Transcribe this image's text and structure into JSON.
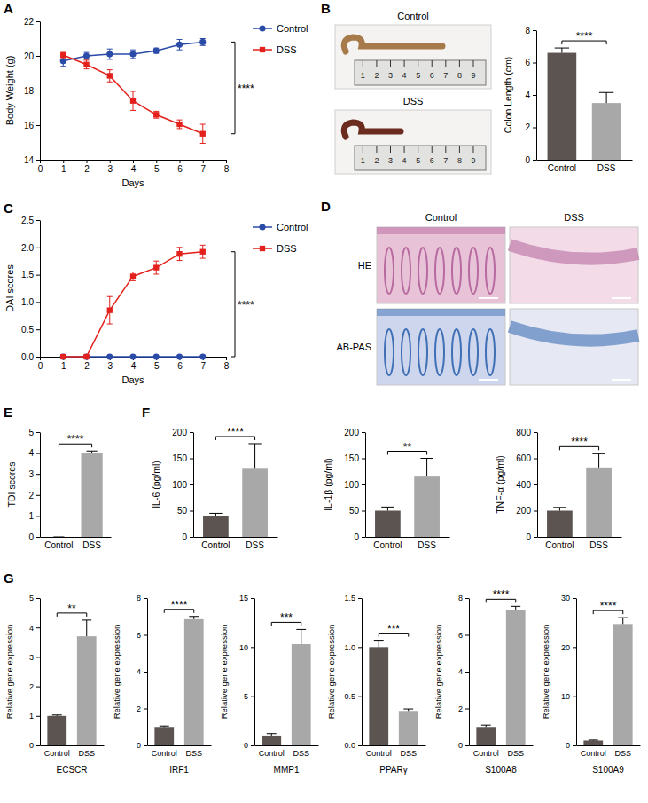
{
  "chart_data": [
    {
      "panel": "A",
      "type": "line",
      "x": [
        1,
        2,
        3,
        4,
        5,
        6,
        7
      ],
      "xlim": [
        0,
        8
      ],
      "xticks": [
        0,
        1,
        2,
        3,
        4,
        5,
        6,
        7,
        8
      ],
      "ylim": [
        14,
        22
      ],
      "yticks": [
        14,
        16,
        18,
        20,
        22
      ],
      "x_label": "Days",
      "y_label": "Body Weight (g)",
      "legend": "right",
      "significance": "****",
      "series": [
        {
          "name": "Control",
          "color": "#2b4ba8",
          "marker": "circle",
          "values": [
            19.7,
            20.0,
            20.1,
            20.1,
            20.3,
            20.65,
            20.8
          ],
          "errors": [
            0.3,
            0.2,
            0.3,
            0.25,
            0.15,
            0.3,
            0.2
          ]
        },
        {
          "name": "DSS",
          "color": "#e3201b",
          "marker": "square",
          "values": [
            20.05,
            19.5,
            18.85,
            17.4,
            16.6,
            16.05,
            15.5
          ],
          "errors": [
            0.15,
            0.25,
            0.35,
            0.55,
            0.2,
            0.25,
            0.55
          ]
        }
      ]
    },
    {
      "type": "bar",
      "categories": [
        "Control",
        "DSS"
      ],
      "values": [
        6.6,
        3.5
      ],
      "errors": [
        0.3,
        0.65
      ],
      "colors": [
        "#5c5451",
        "#a8a8a8"
      ],
      "ylim": [
        0,
        8
      ],
      "yticks": [
        0,
        2,
        4,
        6,
        8
      ],
      "y_label": "Colon Length (cm)",
      "significance": "****"
    },
    {
      "panel": "C",
      "type": "line",
      "x": [
        1,
        2,
        3,
        4,
        5,
        6,
        7
      ],
      "xlim": [
        0,
        8
      ],
      "xticks": [
        0,
        1,
        2,
        3,
        4,
        5,
        6,
        7,
        8
      ],
      "ylim": [
        0,
        2.5
      ],
      "yticks": [
        {
          "value": 0,
          "label": "0.0"
        },
        0.5,
        {
          "value": 1,
          "label": "1.0"
        },
        1.5,
        {
          "value": 2,
          "label": "2.0"
        },
        2.5
      ],
      "x_label": "Days",
      "y_label": "DAI scores",
      "legend": "right",
      "significance": "****",
      "series": [
        {
          "name": "Control",
          "color": "#2b4ba8",
          "marker": "circle",
          "values": [
            0,
            0,
            0,
            0,
            0,
            0,
            0
          ],
          "errors": [
            0,
            0,
            0,
            0,
            0,
            0,
            0
          ]
        },
        {
          "name": "DSS",
          "color": "#e3201b",
          "marker": "square",
          "values": [
            0,
            0,
            0.85,
            1.47,
            1.63,
            1.88,
            1.92
          ],
          "errors": [
            0,
            0,
            0.25,
            0.08,
            0.12,
            0.12,
            0.12
          ]
        }
      ]
    },
    {
      "panel": "E",
      "type": "bar",
      "categories": [
        "Control",
        "DSS"
      ],
      "values": [
        0,
        4.0
      ],
      "errors": [
        0,
        0.1
      ],
      "colors": [
        "#5c5451",
        "#a8a8a8"
      ],
      "ylim": [
        0,
        5
      ],
      "yticks": [
        0,
        1,
        2,
        3,
        4,
        5
      ],
      "y_label": "TDI scores",
      "significance": "****"
    },
    {
      "panel": "F",
      "type": "bar",
      "categories": [
        "Control",
        "DSS"
      ],
      "values": [
        40,
        130
      ],
      "errors": [
        5,
        48
      ],
      "colors": [
        "#5c5451",
        "#a8a8a8"
      ],
      "ylim": [
        0,
        200
      ],
      "yticks": [
        0,
        50,
        100,
        150,
        200
      ],
      "y_label": "IL-6 (pg/ml)",
      "significance": "****"
    },
    {
      "type": "bar",
      "categories": [
        "Control",
        "DSS"
      ],
      "values": [
        50,
        115
      ],
      "errors": [
        7,
        35
      ],
      "colors": [
        "#5c5451",
        "#a8a8a8"
      ],
      "ylim": [
        0,
        200
      ],
      "yticks": [
        0,
        50,
        100,
        150,
        200
      ],
      "y_label": "IL-1β (pg/ml)",
      "significance": "**"
    },
    {
      "type": "bar",
      "categories": [
        "Control",
        "DSS"
      ],
      "values": [
        200,
        530
      ],
      "errors": [
        25,
        105
      ],
      "colors": [
        "#5c5451",
        "#a8a8a8"
      ],
      "ylim": [
        0,
        800
      ],
      "yticks": [
        0,
        200,
        400,
        600,
        800
      ],
      "y_label": "TNF-α (pg/ml)",
      "significance": "****"
    },
    {
      "panel": "G",
      "type": "bar",
      "categories": [
        "Control",
        "DSS"
      ],
      "values": [
        1.0,
        3.7
      ],
      "errors": [
        0.03,
        0.55
      ],
      "colors": [
        "#5c5451",
        "#a8a8a8"
      ],
      "ylim": [
        0,
        5
      ],
      "yticks": [
        0,
        1,
        2,
        3,
        4,
        5
      ],
      "y_label": "Relative gene expression",
      "x_label": "ECSCR",
      "significance": "**"
    },
    {
      "type": "bar",
      "categories": [
        "Control",
        "DSS"
      ],
      "values": [
        1.0,
        6.85
      ],
      "errors": [
        0.05,
        0.15
      ],
      "colors": [
        "#5c5451",
        "#a8a8a8"
      ],
      "ylim": [
        0,
        8
      ],
      "yticks": [
        0,
        2,
        4,
        6,
        8
      ],
      "y_label": "Relative gene expression",
      "x_label": "IRF1",
      "significance": "****"
    },
    {
      "type": "bar",
      "categories": [
        "Control",
        "DSS"
      ],
      "values": [
        1.0,
        10.3
      ],
      "errors": [
        0.2,
        1.5
      ],
      "colors": [
        "#5c5451",
        "#a8a8a8"
      ],
      "ylim": [
        0,
        15
      ],
      "yticks": [
        0,
        5,
        10,
        15
      ],
      "y_label": "Relative gene expression",
      "x_label": "MMP1",
      "significance": "***"
    },
    {
      "type": "bar",
      "categories": [
        "Control",
        "DSS"
      ],
      "values": [
        1.0,
        0.35
      ],
      "errors": [
        0.07,
        0.02
      ],
      "colors": [
        "#5c5451",
        "#a8a8a8"
      ],
      "ylim": [
        0,
        1.5
      ],
      "yticks": [
        {
          "value": 0,
          "label": "0.0"
        },
        0.5,
        {
          "value": 1,
          "label": "1.0"
        },
        1.5
      ],
      "y_label": "Relative gene expression",
      "x_label": "PPARγ",
      "significance": "***"
    },
    {
      "type": "bar",
      "categories": [
        "Control",
        "DSS"
      ],
      "values": [
        1.0,
        7.35
      ],
      "errors": [
        0.1,
        0.2
      ],
      "colors": [
        "#5c5451",
        "#a8a8a8"
      ],
      "ylim": [
        0,
        8
      ],
      "yticks": [
        0,
        2,
        4,
        6,
        8
      ],
      "y_label": "Relative gene expression",
      "x_label": "S100A8",
      "significance": "****"
    },
    {
      "type": "bar",
      "categories": [
        "Control",
        "DSS"
      ],
      "values": [
        1.0,
        24.7
      ],
      "errors": [
        0.1,
        1.3
      ],
      "colors": [
        "#5c5451",
        "#a8a8a8"
      ],
      "ylim": [
        0,
        30
      ],
      "yticks": [
        0,
        10,
        20,
        30
      ],
      "y_label": "Relative gene expression",
      "x_label": "S100A9",
      "significance": "****"
    }
  ],
  "images": [
    {
      "panel": "B",
      "labels": [
        "Control",
        "DSS"
      ],
      "ruler_ticks": [
        1,
        2,
        3,
        4,
        5,
        6,
        7,
        8,
        9
      ]
    },
    {
      "panel": "D",
      "columns": [
        "Control",
        "DSS"
      ],
      "rows": [
        "HE",
        "AB-PAS"
      ]
    }
  ]
}
